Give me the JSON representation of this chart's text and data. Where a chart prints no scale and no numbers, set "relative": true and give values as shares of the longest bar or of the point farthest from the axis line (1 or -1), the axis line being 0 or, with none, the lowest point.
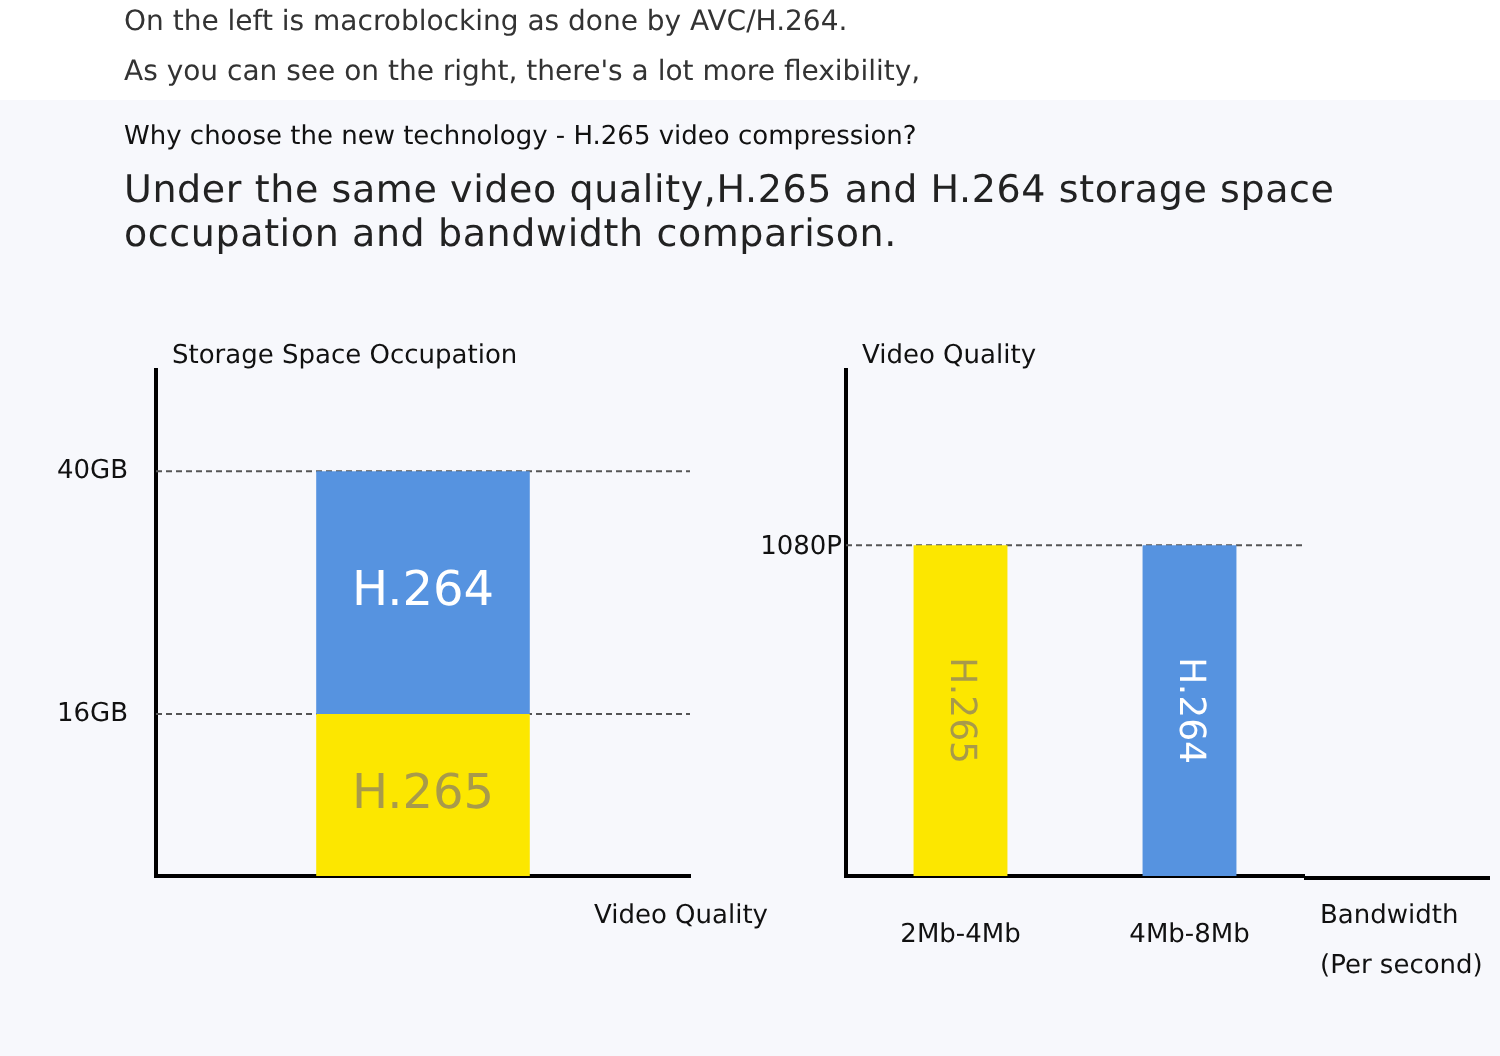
{
  "chart_data": [
    {
      "type": "bar",
      "annotations": [
        "On the left is macroblocking as done by AVC/H.264.",
        "As you can see on the right, there's a lot more flexibility,"
      ],
      "title": "Why choose the new technology - H.265 video compression?",
      "subtitle": "Under the same video quality,H.265 and H.264 storage space occupation and bandwidth comparison.",
      "xlabel": "Video Quality",
      "ylabel": "Storage Space Occupation",
      "categories": [
        null
      ],
      "stacked": true,
      "tick_labels": "y",
      "ref_lines": [
        {
          "axis": "y",
          "value": 16,
          "line_style": "dashed"
        },
        {
          "axis": "y",
          "value": 40,
          "line_style": "dashed"
        }
      ],
      "ylim": [
        0,
        50
      ],
      "yticks": [
        {
          "value": 16,
          "label": "16GB"
        },
        {
          "value": 40,
          "label": "40GB"
        }
      ],
      "series": [
        {
          "name": "H.265",
          "color": "#fce700",
          "values": [
            16
          ]
        },
        {
          "name": "H.264",
          "color": "#5693e0",
          "values": [
            24
          ]
        }
      ]
    },
    {
      "type": "bar",
      "xlabel": "Bandwidth\n(Per second)",
      "ylabel": "Video Quality",
      "categories": [
        "2Mb-4Mb",
        "4Mb-8Mb"
      ],
      "stacked": true,
      "relative": true,
      "ref_lines": [
        {
          "axis": "y",
          "value": 1,
          "label": "1080P",
          "line_style": "dashed"
        }
      ],
      "series": [
        {
          "name": "H.265",
          "color": "#fce700",
          "values": [
            1,
            null
          ]
        },
        {
          "name": "H.264",
          "color": "#5693e0",
          "values": [
            null,
            1
          ]
        }
      ]
    }
  ]
}
